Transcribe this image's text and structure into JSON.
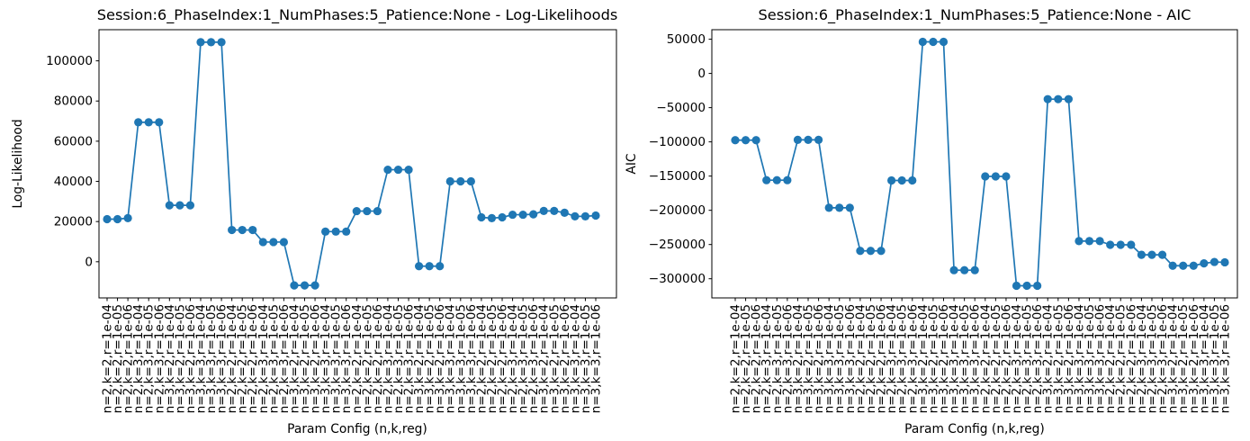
{
  "figure": {
    "background": "#ffffff",
    "accent": "#1f77b4",
    "spine_color": "#000000"
  },
  "chart_data": [
    {
      "type": "line",
      "title": "Session:6_PhaseIndex:1_NumPhases:5_Patience:None - Log-Likelihoods",
      "xlabel": "Param Config (n,k,reg)",
      "ylabel": "Log-Likelihood",
      "legend": "none",
      "grid": false,
      "marker": "circle",
      "line_color": "#1f77b4",
      "ylim": [
        -18000,
        115500
      ],
      "yticks": [
        0,
        20000,
        40000,
        60000,
        80000,
        100000
      ],
      "categories": [
        "n=2,k=2,r=1e-04",
        "n=2,k=2,r=1e-05",
        "n=2,k=2,r=1e-06",
        "n=2,k=3,r=1e-04",
        "n=2,k=3,r=1e-05",
        "n=2,k=3,r=1e-06",
        "n=3,k=2,r=1e-04",
        "n=3,k=2,r=1e-05",
        "n=3,k=2,r=1e-06",
        "n=3,k=3,r=1e-04",
        "n=3,k=3,r=1e-05",
        "n=3,k=3,r=1e-06",
        "n=2,k=2,r=1e-04",
        "n=2,k=2,r=1e-05",
        "n=2,k=2,r=1e-06",
        "n=2,k=3,r=1e-04",
        "n=2,k=3,r=1e-05",
        "n=2,k=3,r=1e-06",
        "n=3,k=2,r=1e-04",
        "n=3,k=2,r=1e-05",
        "n=3,k=2,r=1e-06",
        "n=3,k=3,r=1e-04",
        "n=3,k=3,r=1e-05",
        "n=3,k=3,r=1e-06",
        "n=2,k=2,r=1e-04",
        "n=2,k=2,r=1e-05",
        "n=2,k=2,r=1e-06",
        "n=2,k=3,r=1e-04",
        "n=2,k=3,r=1e-05",
        "n=2,k=3,r=1e-06",
        "n=3,k=2,r=1e-04",
        "n=3,k=2,r=1e-05",
        "n=3,k=2,r=1e-06",
        "n=3,k=3,r=1e-04",
        "n=3,k=3,r=1e-05",
        "n=3,k=3,r=1e-06",
        "n=2,k=2,r=1e-04",
        "n=2,k=2,r=1e-05",
        "n=2,k=2,r=1e-06",
        "n=2,k=3,r=1e-04",
        "n=2,k=3,r=1e-05",
        "n=2,k=3,r=1e-06",
        "n=3,k=2,r=1e-04",
        "n=3,k=2,r=1e-05",
        "n=3,k=2,r=1e-06",
        "n=3,k=3,r=1e-04",
        "n=3,k=3,r=1e-05",
        "n=3,k=3,r=1e-06"
      ],
      "values": [
        21200,
        21200,
        21700,
        69400,
        69400,
        69400,
        28100,
        28100,
        28100,
        109300,
        109300,
        109300,
        15800,
        15800,
        15800,
        9800,
        9800,
        9800,
        -11800,
        -11800,
        -11800,
        15000,
        15000,
        15000,
        25200,
        25200,
        25200,
        45800,
        45800,
        45800,
        -2200,
        -2200,
        -2200,
        40000,
        40000,
        40000,
        22100,
        21700,
        22100,
        23400,
        23400,
        23600,
        25300,
        25300,
        24400,
        22600,
        22600,
        23000
      ]
    },
    {
      "type": "line",
      "title": "Session:6_PhaseIndex:1_NumPhases:5_Patience:None - AIC",
      "xlabel": "Param Config (n,k,reg)",
      "ylabel": "AIC",
      "legend": "none",
      "grid": false,
      "marker": "circle",
      "line_color": "#1f77b4",
      "ylim": [
        -328000,
        63900
      ],
      "yticks": [
        -300000,
        -250000,
        -200000,
        -150000,
        -100000,
        -50000,
        0,
        50000
      ],
      "categories": [
        "n=2,k=2,r=1e-04",
        "n=2,k=2,r=1e-05",
        "n=2,k=2,r=1e-06",
        "n=2,k=3,r=1e-04",
        "n=2,k=3,r=1e-05",
        "n=2,k=3,r=1e-06",
        "n=3,k=2,r=1e-04",
        "n=3,k=2,r=1e-05",
        "n=3,k=2,r=1e-06",
        "n=3,k=3,r=1e-04",
        "n=3,k=3,r=1e-05",
        "n=3,k=3,r=1e-06",
        "n=2,k=2,r=1e-04",
        "n=2,k=2,r=1e-05",
        "n=2,k=2,r=1e-06",
        "n=2,k=3,r=1e-04",
        "n=2,k=3,r=1e-05",
        "n=2,k=3,r=1e-06",
        "n=3,k=2,r=1e-04",
        "n=3,k=2,r=1e-05",
        "n=3,k=2,r=1e-06",
        "n=3,k=3,r=1e-04",
        "n=3,k=3,r=1e-05",
        "n=3,k=3,r=1e-06",
        "n=2,k=2,r=1e-04",
        "n=2,k=2,r=1e-05",
        "n=2,k=2,r=1e-06",
        "n=2,k=3,r=1e-04",
        "n=2,k=3,r=1e-05",
        "n=2,k=3,r=1e-06",
        "n=3,k=2,r=1e-04",
        "n=3,k=2,r=1e-05",
        "n=3,k=2,r=1e-06",
        "n=3,k=3,r=1e-04",
        "n=3,k=3,r=1e-05",
        "n=3,k=3,r=1e-06",
        "n=2,k=2,r=1e-04",
        "n=2,k=2,r=1e-05",
        "n=2,k=2,r=1e-06",
        "n=2,k=3,r=1e-04",
        "n=2,k=3,r=1e-05",
        "n=2,k=3,r=1e-06",
        "n=3,k=2,r=1e-04",
        "n=3,k=2,r=1e-05",
        "n=3,k=2,r=1e-06",
        "n=3,k=3,r=1e-04",
        "n=3,k=3,r=1e-05",
        "n=3,k=3,r=1e-06"
      ],
      "values": [
        -97500,
        -97500,
        -97500,
        -156000,
        -156000,
        -156000,
        -97000,
        -97000,
        -97000,
        -196300,
        -196300,
        -196300,
        -259300,
        -259300,
        -259300,
        -156400,
        -156400,
        -156400,
        46100,
        46100,
        46100,
        -287500,
        -287500,
        -287500,
        -150500,
        -150500,
        -150500,
        -310200,
        -310200,
        -310200,
        -37600,
        -37600,
        -37600,
        -245000,
        -245000,
        -245000,
        -250400,
        -250400,
        -250400,
        -265000,
        -265000,
        -265000,
        -281000,
        -281000,
        -281000,
        -277500,
        -275500,
        -276000
      ]
    }
  ]
}
